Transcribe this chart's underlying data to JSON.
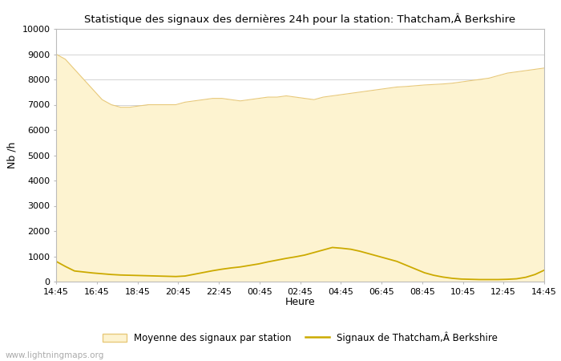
{
  "title": "Statistique des signaux des dernières 24h pour la station: Thatcham,Â Berkshire",
  "xlabel": "Heure",
  "ylabel": "Nb /h",
  "ylim": [
    0,
    10000
  ],
  "yticks": [
    0,
    1000,
    2000,
    3000,
    4000,
    5000,
    6000,
    7000,
    8000,
    9000,
    10000
  ],
  "xtick_labels": [
    "14:45",
    "16:45",
    "18:45",
    "20:45",
    "22:45",
    "00:45",
    "02:45",
    "04:45",
    "06:45",
    "08:45",
    "10:45",
    "12:45",
    "14:45"
  ],
  "fill_color": "#fdf3d0",
  "fill_edge_color": "#e8c97a",
  "line_color": "#ccaa00",
  "background_color": "#ffffff",
  "grid_color": "#cccccc",
  "watermark": "www.lightningmaps.org",
  "legend_fill_label": "Moyenne des signaux par station",
  "legend_line_label": "Signaux de Thatcham,Â Berkshire",
  "avg_signal": [
    9000,
    8800,
    8400,
    8000,
    7600,
    7200,
    7000,
    6900,
    6900,
    6950,
    7000,
    7000,
    7000,
    7000,
    7100,
    7150,
    7200,
    7250,
    7250,
    7200,
    7150,
    7200,
    7250,
    7300,
    7300,
    7350,
    7300,
    7250,
    7200,
    7300,
    7350,
    7400,
    7450,
    7500,
    7550,
    7600,
    7650,
    7700,
    7720,
    7750,
    7780,
    7800,
    7820,
    7850,
    7900,
    7950,
    8000,
    8050,
    8150,
    8250,
    8300,
    8350,
    8400,
    8450
  ],
  "station_signal": [
    800,
    600,
    420,
    380,
    340,
    310,
    280,
    260,
    250,
    240,
    230,
    220,
    210,
    200,
    220,
    290,
    360,
    430,
    490,
    540,
    580,
    640,
    700,
    780,
    850,
    920,
    980,
    1050,
    1150,
    1250,
    1350,
    1320,
    1280,
    1200,
    1100,
    1000,
    900,
    800,
    650,
    500,
    350,
    250,
    180,
    130,
    100,
    90,
    80,
    80,
    80,
    90,
    110,
    170,
    280,
    450
  ]
}
